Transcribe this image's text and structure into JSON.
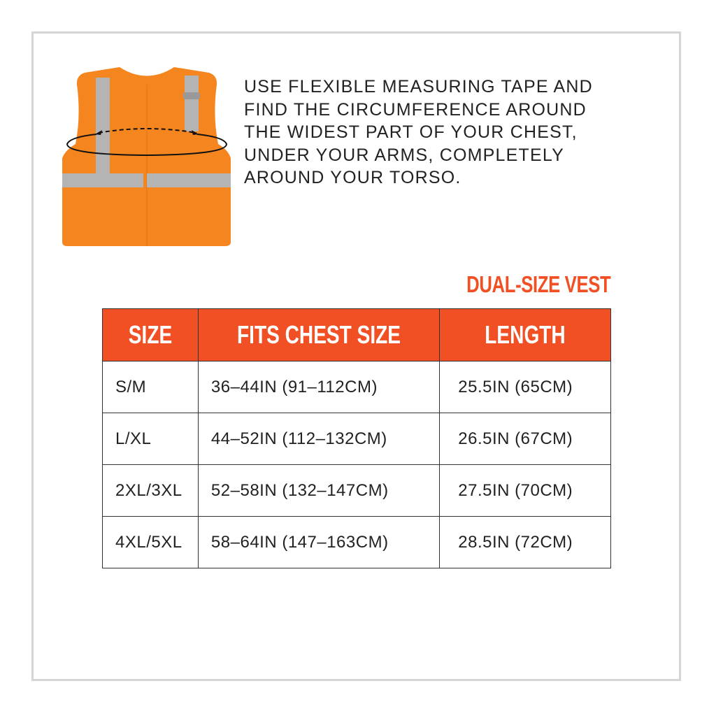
{
  "instructions": [
    "USE FLEXIBLE MEASURING TAPE AND",
    "FIND THE CIRCUMFERENCE AROUND",
    "THE WIDEST PART OF YOUR CHEST,",
    "UNDER YOUR ARMS, COMPLETELY",
    "AROUND YOUR TORSO."
  ],
  "subtitle": "DUAL-SIZE VEST",
  "table": {
    "headers": [
      "SIZE",
      "FITS CHEST SIZE",
      "LENGTH"
    ],
    "rows": [
      [
        "S/M",
        "36–44IN (91–112CM)",
        "25.5IN (65CM)"
      ],
      [
        "L/XL",
        "44–52IN (112–132CM)",
        "26.5IN (67CM)"
      ],
      [
        "2XL/3XL",
        "52–58IN (132–147CM)",
        "27.5IN (70CM)"
      ],
      [
        "4XL/5XL",
        "58–64IN (147–163CM)",
        "28.5IN (72CM)"
      ]
    ]
  },
  "colors": {
    "accent": "#f05023",
    "vest": "#f5861f",
    "reflective": "#b4b4b4"
  },
  "icons": {
    "illustration": "safety-vest-measuring-icon"
  }
}
